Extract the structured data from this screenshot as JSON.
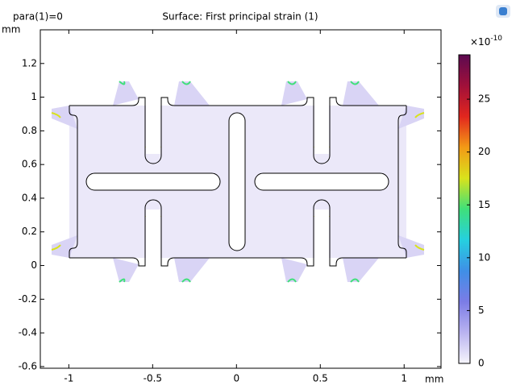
{
  "chart_data": {
    "type": "surface",
    "parameter_label": "para(1)=0",
    "title": "Surface: First principal strain (1)",
    "x_unit": "mm",
    "y_unit": "mm",
    "xlim": [
      -1.17,
      1.22
    ],
    "xticks": [
      -1,
      -0.5,
      0,
      0.5,
      1
    ],
    "ylim": [
      -0.61,
      1.4
    ],
    "yticks": [
      -0.6,
      -0.4,
      -0.2,
      0,
      0.2,
      0.4,
      0.6,
      0.8,
      1,
      1.2
    ],
    "colorbar_multiplier": "×10",
    "colorbar_exponent": "-10",
    "clim": [
      0,
      29.2
    ],
    "cticks": [
      0,
      5,
      10,
      15,
      20,
      25
    ],
    "colormap": [
      "#f6f5fc",
      "#b9b3f0",
      "#7b7ce6",
      "#3f8fe6",
      "#25d0e0",
      "#3fe07a",
      "#d9e21c",
      "#f39a16",
      "#e2261e",
      "#a0103a",
      "#5c0a50"
    ]
  }
}
